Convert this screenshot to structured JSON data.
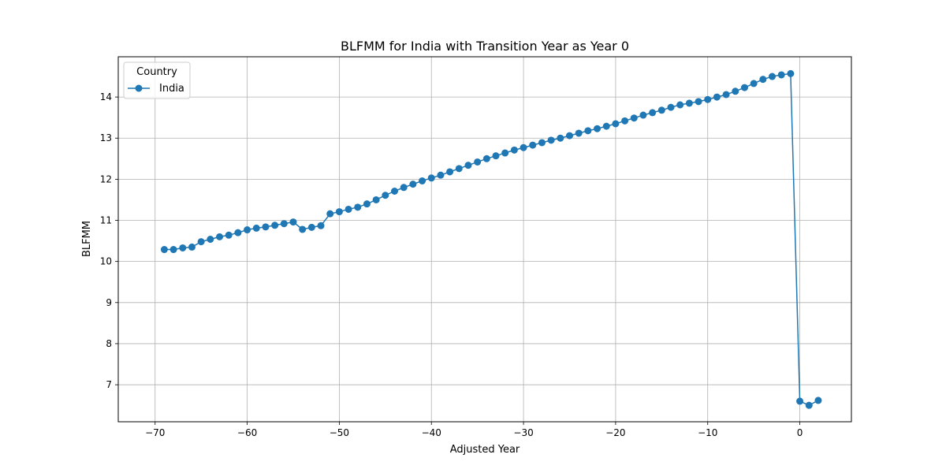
{
  "chart_data": {
    "type": "line",
    "title": "BLFMM for India with Transition Year as Year 0",
    "xlabel": "Adjusted Year",
    "ylabel": "BLFMM",
    "xlim": [
      -74,
      5.6
    ],
    "ylim": [
      6.1,
      14.98
    ],
    "xticks": [
      -70,
      -60,
      -50,
      -40,
      -30,
      -20,
      -10,
      0
    ],
    "yticks": [
      7,
      8,
      9,
      10,
      11,
      12,
      13,
      14
    ],
    "grid": true,
    "legend": {
      "title": "Country",
      "placement": "top-left"
    },
    "series": [
      {
        "name": "India",
        "color": "#1f77b4",
        "marker": "circle",
        "x": [
          -69,
          -68,
          -67,
          -66,
          -65,
          -64,
          -63,
          -62,
          -61,
          -60,
          -59,
          -58,
          -57,
          -56,
          -55,
          -54,
          -53,
          -52,
          -51,
          -50,
          -49,
          -48,
          -47,
          -46,
          -45,
          -44,
          -43,
          -42,
          -41,
          -40,
          -39,
          -38,
          -37,
          -36,
          -35,
          -34,
          -33,
          -32,
          -31,
          -30,
          -29,
          -28,
          -27,
          -26,
          -25,
          -24,
          -23,
          -22,
          -21,
          -20,
          -19,
          -18,
          -17,
          -16,
          -15,
          -14,
          -13,
          -12,
          -11,
          -10,
          -9,
          -8,
          -7,
          -6,
          -5,
          -4,
          -3,
          -2,
          -1,
          0,
          1,
          2
        ],
        "values": [
          10.29,
          10.29,
          10.33,
          10.35,
          10.48,
          10.54,
          10.6,
          10.64,
          10.7,
          10.77,
          10.81,
          10.84,
          10.88,
          10.92,
          10.96,
          10.78,
          10.83,
          10.87,
          11.16,
          11.21,
          11.27,
          11.32,
          11.4,
          11.5,
          11.61,
          11.71,
          11.8,
          11.88,
          11.96,
          12.03,
          12.1,
          12.18,
          12.26,
          12.34,
          12.42,
          12.5,
          12.57,
          12.64,
          12.71,
          12.77,
          12.83,
          12.89,
          12.95,
          13.0,
          13.06,
          13.12,
          13.18,
          13.23,
          13.29,
          13.35,
          13.42,
          13.49,
          13.56,
          13.62,
          13.68,
          13.75,
          13.81,
          13.85,
          13.89,
          13.94,
          14.0,
          14.06,
          14.14,
          14.23,
          14.33,
          14.43,
          14.5,
          14.54,
          14.57,
          6.6,
          6.5,
          6.62
        ]
      }
    ]
  }
}
